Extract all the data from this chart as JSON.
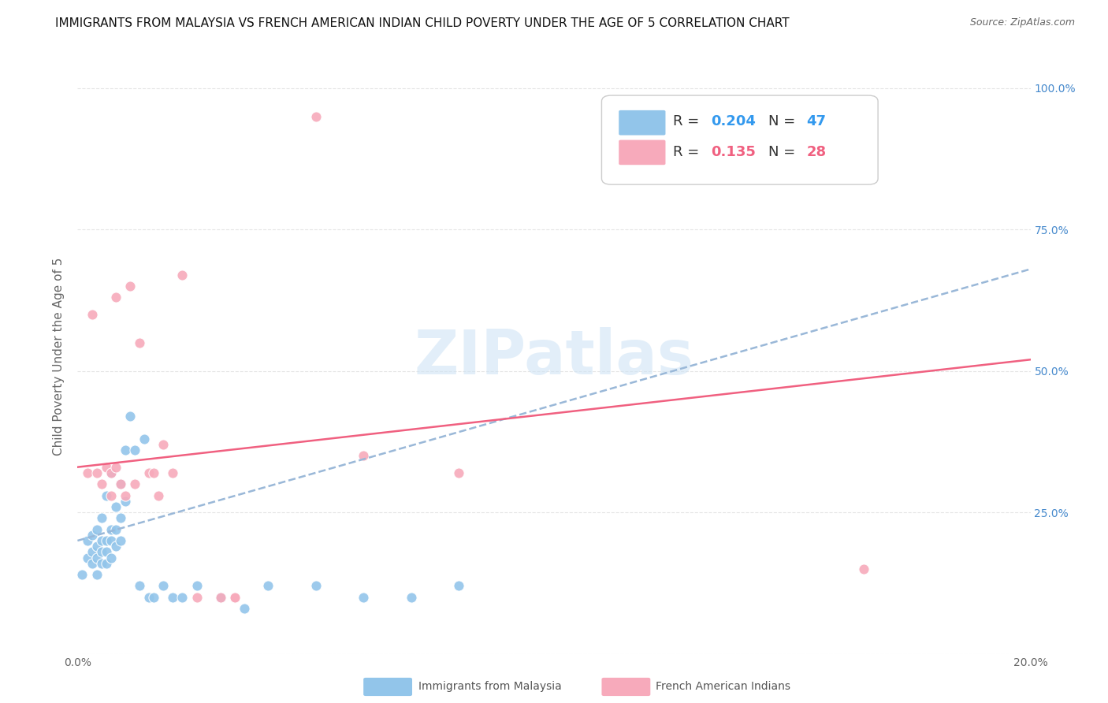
{
  "title": "IMMIGRANTS FROM MALAYSIA VS FRENCH AMERICAN INDIAN CHILD POVERTY UNDER THE AGE OF 5 CORRELATION CHART",
  "source": "Source: ZipAtlas.com",
  "ylabel": "Child Poverty Under the Age of 5",
  "xmin": 0.0,
  "xmax": 0.2,
  "ymin": 0.0,
  "ymax": 1.05,
  "x_ticks": [
    0.0,
    0.04,
    0.08,
    0.12,
    0.16,
    0.2
  ],
  "x_tick_labels": [
    "0.0%",
    "",
    "",
    "",
    "",
    "20.0%"
  ],
  "y_ticks": [
    0.0,
    0.25,
    0.5,
    0.75,
    1.0
  ],
  "right_y_tick_labels": [
    "",
    "25.0%",
    "50.0%",
    "75.0%",
    "100.0%"
  ],
  "legend_R_blue": "0.204",
  "legend_N_blue": "47",
  "legend_R_pink": "0.135",
  "legend_N_pink": "28",
  "blue_color": "#92C5EA",
  "pink_color": "#F7AABB",
  "blue_line_color": "#9AB8D8",
  "pink_line_color": "#F06080",
  "watermark_color": "#D0E4F5",
  "watermark": "ZIPatlas",
  "blue_scatter_x": [
    0.001,
    0.002,
    0.002,
    0.003,
    0.003,
    0.003,
    0.004,
    0.004,
    0.004,
    0.004,
    0.005,
    0.005,
    0.005,
    0.005,
    0.006,
    0.006,
    0.006,
    0.006,
    0.007,
    0.007,
    0.007,
    0.007,
    0.008,
    0.008,
    0.008,
    0.009,
    0.009,
    0.009,
    0.01,
    0.01,
    0.011,
    0.012,
    0.013,
    0.014,
    0.015,
    0.016,
    0.018,
    0.02,
    0.022,
    0.025,
    0.03,
    0.035,
    0.04,
    0.05,
    0.06,
    0.07,
    0.08
  ],
  "blue_scatter_y": [
    0.14,
    0.2,
    0.17,
    0.16,
    0.18,
    0.21,
    0.14,
    0.17,
    0.19,
    0.22,
    0.16,
    0.18,
    0.2,
    0.24,
    0.16,
    0.18,
    0.2,
    0.28,
    0.17,
    0.2,
    0.22,
    0.32,
    0.19,
    0.22,
    0.26,
    0.2,
    0.24,
    0.3,
    0.27,
    0.36,
    0.42,
    0.36,
    0.12,
    0.38,
    0.1,
    0.1,
    0.12,
    0.1,
    0.1,
    0.12,
    0.1,
    0.08,
    0.12,
    0.12,
    0.1,
    0.1,
    0.12
  ],
  "pink_scatter_x": [
    0.002,
    0.003,
    0.004,
    0.005,
    0.006,
    0.007,
    0.007,
    0.008,
    0.008,
    0.009,
    0.01,
    0.011,
    0.012,
    0.013,
    0.015,
    0.016,
    0.017,
    0.018,
    0.02,
    0.022,
    0.025,
    0.03,
    0.033,
    0.033,
    0.05,
    0.06,
    0.08,
    0.165
  ],
  "pink_scatter_y": [
    0.32,
    0.6,
    0.32,
    0.3,
    0.33,
    0.32,
    0.28,
    0.33,
    0.63,
    0.3,
    0.28,
    0.65,
    0.3,
    0.55,
    0.32,
    0.32,
    0.28,
    0.37,
    0.32,
    0.67,
    0.1,
    0.1,
    0.1,
    0.1,
    0.95,
    0.35,
    0.32,
    0.15
  ],
  "blue_line_x": [
    0.0,
    0.2
  ],
  "blue_line_y": [
    0.2,
    0.68
  ],
  "pink_line_x": [
    0.0,
    0.2
  ],
  "pink_line_y": [
    0.33,
    0.52
  ],
  "background_color": "#FFFFFF",
  "grid_color": "#E5E5E5",
  "title_fontsize": 11,
  "axis_label_fontsize": 11,
  "tick_fontsize": 10,
  "legend_fontsize": 13
}
